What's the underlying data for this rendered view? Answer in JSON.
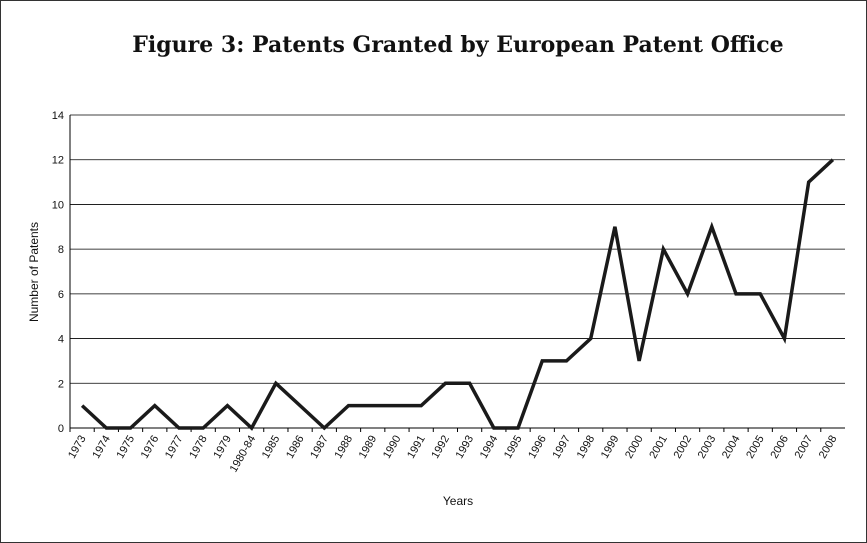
{
  "chart_data": {
    "type": "line",
    "title": "Figure 3: Patents Granted by European Patent Office",
    "x_label": "Years",
    "y_label": "Number of Patents",
    "categories": [
      "1973",
      "1974",
      "1975",
      "1976",
      "1977",
      "1978",
      "1979",
      "1980-84",
      "1985",
      "1986",
      "1987",
      "1988",
      "1989",
      "1990",
      "1991",
      "1992",
      "1993",
      "1994",
      "1995",
      "1996",
      "1997",
      "1998",
      "1999",
      "2000",
      "2001",
      "2002",
      "2003",
      "2004",
      "2005",
      "2006",
      "2007",
      "2008"
    ],
    "values": [
      1,
      0,
      0,
      1,
      0,
      0,
      1,
      0,
      2,
      1,
      0,
      1,
      1,
      1,
      1,
      2,
      2,
      0,
      0,
      3,
      3,
      4,
      9,
      3,
      8,
      6,
      9,
      6,
      6,
      4,
      11,
      12
    ],
    "color": "#1a1a1a",
    "ylim": [
      0,
      14
    ],
    "yticks": [
      0,
      2,
      4,
      6,
      8,
      10,
      12,
      14
    ],
    "grid": true
  }
}
